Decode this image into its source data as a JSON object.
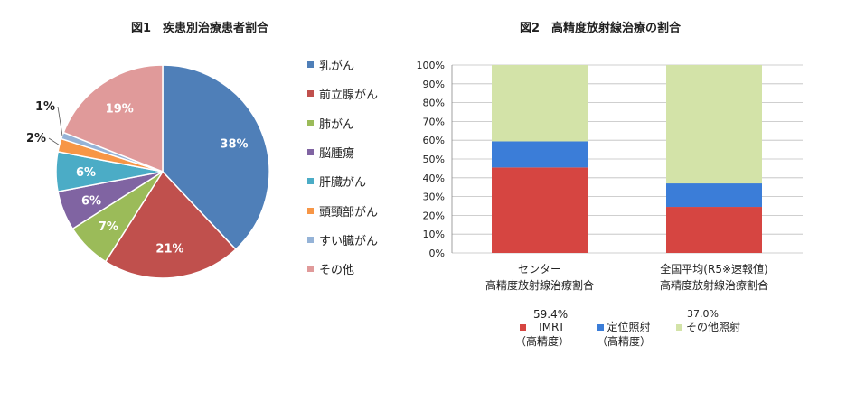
{
  "chart_data": [
    {
      "type": "pie",
      "title": "図1　疾患別治療患者割合",
      "categories": [
        "乳がん",
        "前立腺がん",
        "肺がん",
        "脳腫瘍",
        "肝臓がん",
        "頭頸部がん",
        "すい臓がん",
        "その他"
      ],
      "values": [
        38,
        21,
        7,
        6,
        6,
        2,
        1,
        19
      ],
      "labels": [
        "38%",
        "21%",
        "7%",
        "6%",
        "6%",
        "2%",
        "1%",
        "19%"
      ],
      "colors": [
        "#4f7fb8",
        "#c0504d",
        "#9bbb59",
        "#8064a2",
        "#4bacc6",
        "#f79646",
        "#95b3d7",
        "#e09a9a"
      ],
      "legend_position": "right"
    },
    {
      "type": "bar",
      "stacked": true,
      "title": "図2　高精度放射線治療の割合",
      "categories": [
        {
          "line1": "センター",
          "line2": "高精度放射線治療割合"
        },
        {
          "line1": "全国平均(R5※速報値)",
          "line2": "高精度放射線治療割合"
        }
      ],
      "series": [
        {
          "name": "IMRT",
          "sub": "（高精度）",
          "values": [
            45.5,
            24.5
          ],
          "color": "#d64541"
        },
        {
          "name": "定位照射",
          "sub": "（高精度）",
          "values": [
            13.9,
            12.5
          ],
          "color": "#3b7dd8"
        },
        {
          "name": "その他照射",
          "sub": "",
          "values": [
            40.6,
            63.0
          ],
          "color": "#d3e3a8"
        }
      ],
      "y_ticks": [
        "0%",
        "10%",
        "20%",
        "30%",
        "40%",
        "50%",
        "60%",
        "70%",
        "80%",
        "90%",
        "100%"
      ],
      "ylim": [
        0,
        100
      ],
      "annotations": [
        "59.4%",
        "37.0%"
      ],
      "grid": true,
      "legend_position": "bottom"
    }
  ]
}
